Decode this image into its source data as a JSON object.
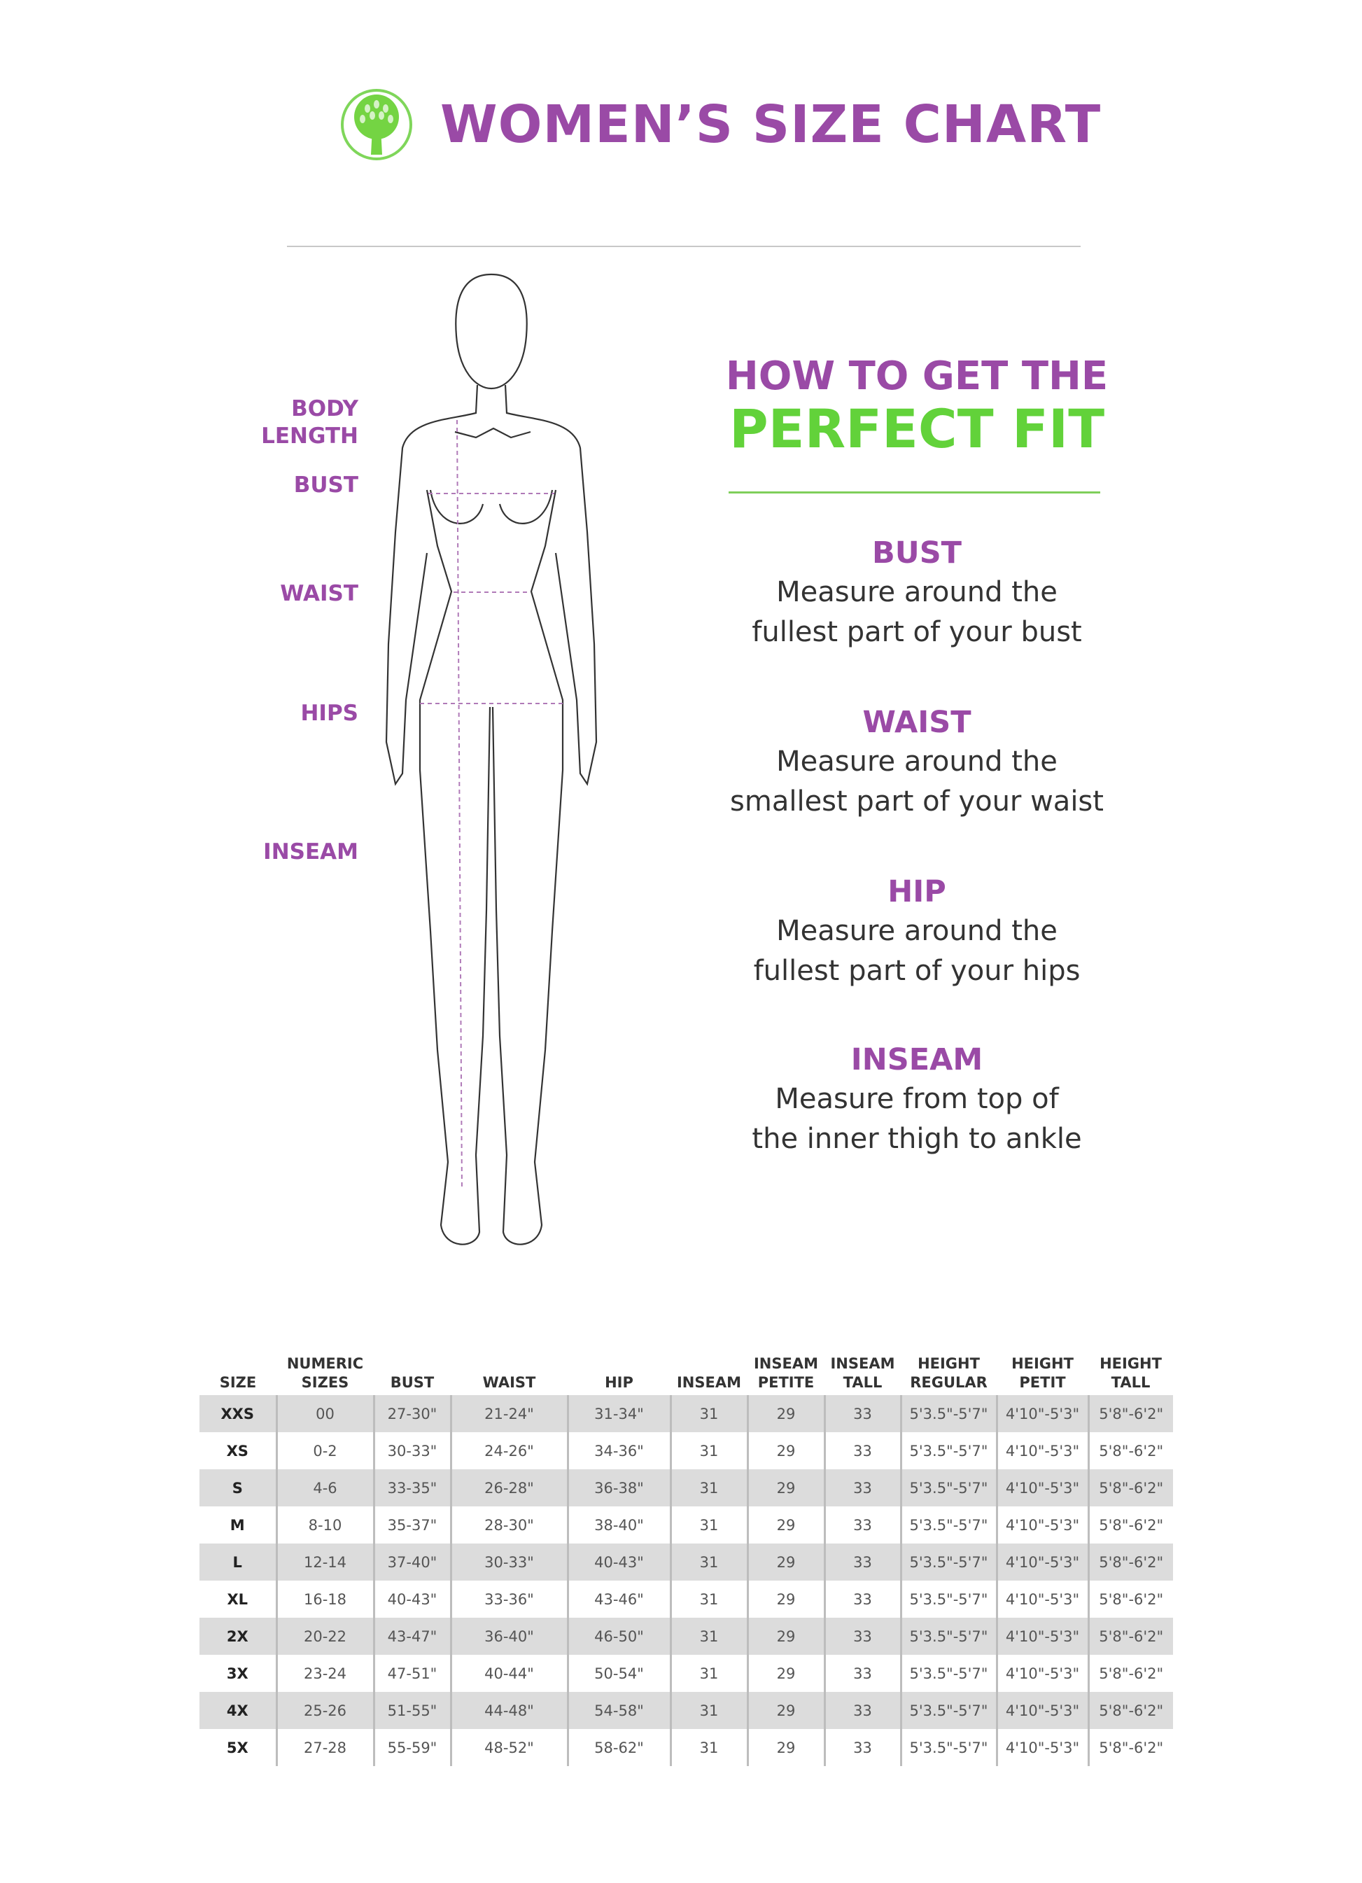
{
  "header": {
    "title": "WOMEN’S SIZE CHART",
    "logo_icon": "tree-icon",
    "colors": {
      "purple": "#9a4aa6",
      "green": "#62d23a"
    }
  },
  "figure": {
    "labels": [
      "BODY",
      "LENGTH",
      "BUST",
      "WAIST",
      "HIPS",
      "INSEAM"
    ]
  },
  "fit": {
    "line1": "HOW TO GET THE",
    "line2": "PERFECT FIT",
    "tips": [
      {
        "title": "BUST",
        "line1": "Measure around the",
        "line2": "fullest part of your bust"
      },
      {
        "title": "WAIST",
        "line1": "Measure around the",
        "line2": "smallest part of your waist"
      },
      {
        "title": "HIP",
        "line1": "Measure around the",
        "line2": "fullest part of your hips"
      },
      {
        "title": "INSEAM",
        "line1": "Measure from top of",
        "line2": "the inner thigh to ankle"
      }
    ]
  },
  "table": {
    "headers": [
      [
        "SIZE",
        ""
      ],
      [
        "NUMERIC",
        "SIZES"
      ],
      [
        "BUST",
        ""
      ],
      [
        "WAIST",
        ""
      ],
      [
        "HIP",
        ""
      ],
      [
        "INSEAM",
        ""
      ],
      [
        "INSEAM",
        "PETITE"
      ],
      [
        "INSEAM",
        "TALL"
      ],
      [
        "HEIGHT",
        "REGULAR"
      ],
      [
        "HEIGHT",
        "PETIT"
      ],
      [
        "HEIGHT",
        "TALL"
      ]
    ],
    "rows": [
      [
        "XXS",
        "00",
        "27-30\"",
        "21-24\"",
        "31-34\"",
        "31",
        "29",
        "33",
        "5'3.5\"-5'7\"",
        "4'10\"-5'3\"",
        "5'8\"-6'2\""
      ],
      [
        "XS",
        "0-2",
        "30-33\"",
        "24-26\"",
        "34-36\"",
        "31",
        "29",
        "33",
        "5'3.5\"-5'7\"",
        "4'10\"-5'3\"",
        "5'8\"-6'2\""
      ],
      [
        "S",
        "4-6",
        "33-35\"",
        "26-28\"",
        "36-38\"",
        "31",
        "29",
        "33",
        "5'3.5\"-5'7\"",
        "4'10\"-5'3\"",
        "5'8\"-6'2\""
      ],
      [
        "M",
        "8-10",
        "35-37\"",
        "28-30\"",
        "38-40\"",
        "31",
        "29",
        "33",
        "5'3.5\"-5'7\"",
        "4'10\"-5'3\"",
        "5'8\"-6'2\""
      ],
      [
        "L",
        "12-14",
        "37-40\"",
        "30-33\"",
        "40-43\"",
        "31",
        "29",
        "33",
        "5'3.5\"-5'7\"",
        "4'10\"-5'3\"",
        "5'8\"-6'2\""
      ],
      [
        "XL",
        "16-18",
        "40-43\"",
        "33-36\"",
        "43-46\"",
        "31",
        "29",
        "33",
        "5'3.5\"-5'7\"",
        "4'10\"-5'3\"",
        "5'8\"-6'2\""
      ],
      [
        "2X",
        "20-22",
        "43-47\"",
        "36-40\"",
        "46-50\"",
        "31",
        "29",
        "33",
        "5'3.5\"-5'7\"",
        "4'10\"-5'3\"",
        "5'8\"-6'2\""
      ],
      [
        "3X",
        "23-24",
        "47-51\"",
        "40-44\"",
        "50-54\"",
        "31",
        "29",
        "33",
        "5'3.5\"-5'7\"",
        "4'10\"-5'3\"",
        "5'8\"-6'2\""
      ],
      [
        "4X",
        "25-26",
        "51-55\"",
        "44-48\"",
        "54-58\"",
        "31",
        "29",
        "33",
        "5'3.5\"-5'7\"",
        "4'10\"-5'3\"",
        "5'8\"-6'2\""
      ],
      [
        "5X",
        "27-28",
        "55-59\"",
        "48-52\"",
        "58-62\"",
        "31",
        "29",
        "33",
        "5'3.5\"-5'7\"",
        "4'10\"-5'3\"",
        "5'8\"-6'2\""
      ]
    ]
  }
}
